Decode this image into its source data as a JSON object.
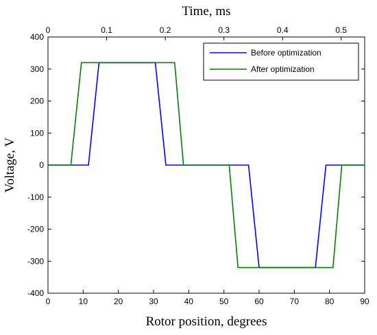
{
  "chart_data": {
    "type": "line",
    "xlabel": "Rotor position, degrees",
    "ylabel": "Voltage, V",
    "x2label": "Time, ms",
    "xlim": [
      0,
      90
    ],
    "ylim": [
      -400,
      400
    ],
    "x2lim": [
      0,
      0.54
    ],
    "xticks": [
      "0",
      "10",
      "20",
      "30",
      "40",
      "50",
      "60",
      "70",
      "80",
      "90"
    ],
    "yticks": [
      "400",
      "300",
      "200",
      "100",
      "0",
      "-100",
      "-200",
      "-300",
      "-400"
    ],
    "x2ticks": [
      "0",
      "0.1",
      "0.2",
      "0.3",
      "0.4",
      "0.5"
    ],
    "grid": false,
    "legend_position": "top-right",
    "series": [
      {
        "name": "Before optimization",
        "color": "#0000ff",
        "x": [
          0,
          11.5,
          14.5,
          30.5,
          33.5,
          57,
          60,
          76,
          79,
          90
        ],
        "y": [
          0,
          0,
          320,
          320,
          0,
          0,
          -320,
          -320,
          0,
          0
        ]
      },
      {
        "name": "After optimization",
        "color": "#008000",
        "x": [
          0,
          6.5,
          9.5,
          36,
          38.5,
          51.5,
          54,
          81,
          83.5,
          90
        ],
        "y": [
          0,
          0,
          320,
          320,
          0,
          0,
          -320,
          -320,
          0,
          0
        ]
      }
    ]
  }
}
